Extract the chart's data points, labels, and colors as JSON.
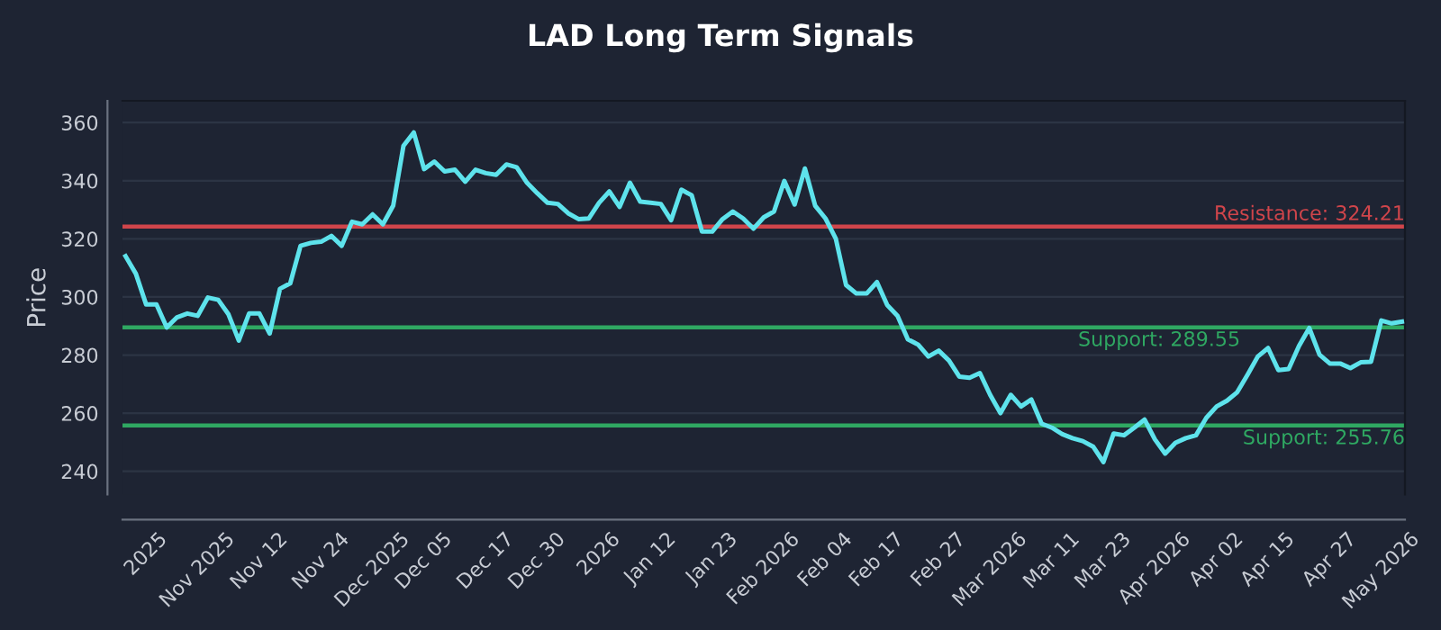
{
  "chart_data": {
    "type": "line",
    "title": "LAD Long Term Signals",
    "ylabel": "Price",
    "categories": [
      null,
      null,
      "2025",
      null,
      null,
      null,
      null,
      "Nov 2025",
      null,
      null,
      null,
      null,
      null,
      "Nov 12",
      null,
      null,
      null,
      null,
      null,
      "Nov 24",
      null,
      null,
      null,
      null,
      "Dec 2025",
      null,
      null,
      null,
      null,
      "Dec 05",
      null,
      null,
      null,
      null,
      null,
      "Dec 17",
      null,
      null,
      null,
      null,
      "Dec 30",
      null,
      null,
      null,
      null,
      null,
      "2026",
      null,
      null,
      null,
      null,
      "Jan 12",
      null,
      null,
      null,
      null,
      null,
      "Jan 23",
      null,
      null,
      null,
      null,
      "Feb 2026",
      null,
      null,
      null,
      null,
      null,
      "Feb 04",
      null,
      null,
      null,
      null,
      "Feb 17",
      null,
      null,
      null,
      null,
      null,
      "Feb 27",
      null,
      null,
      null,
      null,
      "Mar 2026",
      null,
      null,
      null,
      null,
      null,
      "Mar 11",
      null,
      null,
      null,
      null,
      "Mar 23",
      null,
      null,
      null,
      null,
      "Apr 2026",
      null,
      null,
      null,
      null,
      null,
      "Apr 02",
      null,
      null,
      null,
      null,
      "Apr 15",
      null,
      null,
      null,
      null,
      null,
      "Apr 27",
      null,
      null,
      null,
      null,
      "May 2026",
      null,
      null
    ],
    "series": [
      {
        "color": "#5ee3ec",
        "values": [
          314,
          308,
          297.4,
          297.4,
          289.5,
          293,
          294.3,
          293.5,
          299.8,
          299,
          294,
          285,
          294.3,
          294.3,
          287.4,
          302.8,
          304.7,
          317.6,
          318.6,
          319,
          321,
          317.6,
          325.9,
          325,
          328.4,
          325,
          331.4,
          352,
          356.6,
          344,
          346.6,
          343.2,
          343.8,
          339.7,
          343.8,
          342.6,
          342,
          345.6,
          344.6,
          339.3,
          335.7,
          332.4,
          332,
          328.8,
          326.8,
          327,
          332.4,
          336.3,
          331,
          339.3,
          332.8,
          332.4,
          332,
          326.4,
          336.9,
          335,
          322.5,
          322.5,
          326.8,
          329.4,
          327,
          323.5,
          327.4,
          329.4,
          339.9,
          331.8,
          344.2,
          331.4,
          327,
          320.1,
          304.1,
          301.2,
          301.2,
          305.1,
          297.2,
          293.5,
          285.4,
          283.6,
          279.5,
          281.5,
          278.1,
          272.6,
          272.2,
          273.8,
          266.3,
          260,
          266.3,
          262.3,
          264.7,
          256.4,
          255,
          252.8,
          251.4,
          250.4,
          248.5,
          243.2,
          253,
          252.4,
          255,
          257.8,
          251,
          246.1,
          249.8,
          251.4,
          252.4,
          258.4,
          262.3,
          264.3,
          267.2,
          273.2,
          279.5,
          282.4,
          274.8,
          275.2,
          283.1,
          289.3,
          280.1,
          277.1,
          277.1,
          275.5,
          277.5,
          277.7,
          291.9,
          290.9,
          291.5
        ]
      }
    ],
    "ylim": [
      232,
      367.5
    ],
    "yticks": [
      240,
      260,
      280,
      300,
      320,
      340,
      360
    ],
    "grid": "y",
    "ref_lines": [
      {
        "axis": "y",
        "value": 324.21,
        "label": "Resistance: 324.21",
        "color": "#d0454b"
      },
      {
        "axis": "y",
        "value": 289.55,
        "label": "Support: 289.55",
        "color": "#2fa862"
      },
      {
        "axis": "y",
        "value": 255.76,
        "label": "Support: 255.76",
        "color": "#2fa862"
      }
    ]
  }
}
